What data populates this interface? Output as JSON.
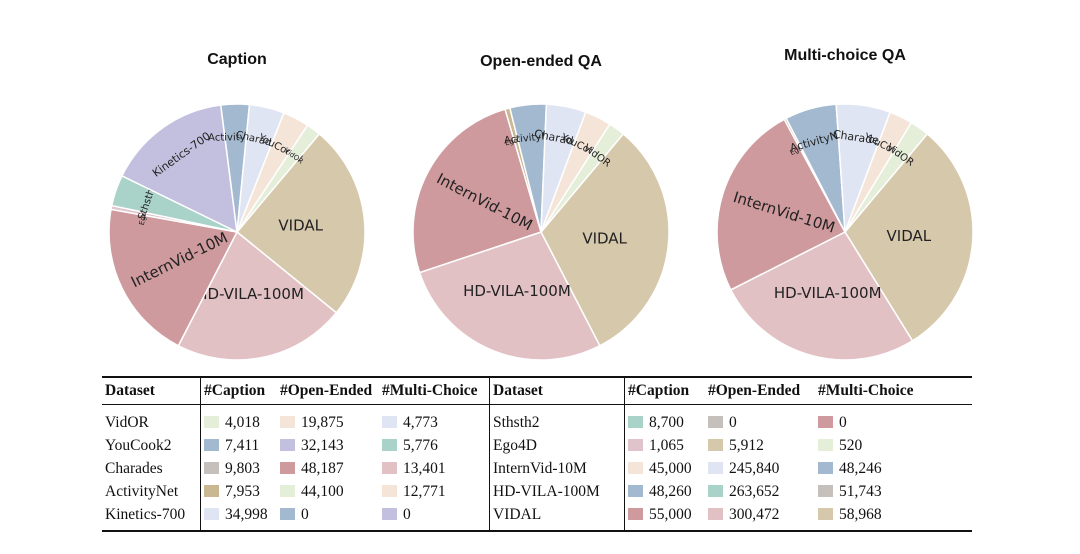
{
  "chart_data": [
    {
      "type": "pie",
      "title": "Caption",
      "labels": [
        "VIDAL",
        "HD-VILA-100M",
        "InternVid-10M",
        "Ego4D",
        "Sthsth2",
        "Kinetics-700",
        "ActivityNet",
        "Charades",
        "YouCook2",
        "VidOR"
      ],
      "values": [
        55000,
        48260,
        45000,
        1065,
        8700,
        34998,
        7953,
        9803,
        7411,
        4018
      ],
      "colors": [
        "#d6c8ab",
        "#e2c1c5",
        "#cf9a9e",
        "#dfc4cb",
        "#a9d2c8",
        "#c2c0de",
        "#a3b9cf",
        "#dfe5f2",
        "#f4e5d8",
        "#e4eed9"
      ],
      "legend": "none"
    },
    {
      "type": "pie",
      "title": "Open-ended QA",
      "labels": [
        "VIDAL",
        "HD-VILA-100M",
        "InternVid-10M",
        "Ego4D",
        "ActivityNet",
        "Charades",
        "YouCook2",
        "VidOR",
        "Kinetics-700",
        "Sthsth2"
      ],
      "values": [
        300472,
        263652,
        245840,
        5912,
        44100,
        48187,
        32143,
        19875,
        0,
        0
      ],
      "colors": [
        "#d6c8ab",
        "#e2c1c5",
        "#cf9a9e",
        "#c9b892",
        "#a3b9cf",
        "#dfe5f2",
        "#f4e5d8",
        "#e4eed9",
        "#c2c0de",
        "#a9d2c8"
      ],
      "legend": "none"
    },
    {
      "type": "pie",
      "title": "Multi-choice QA",
      "labels": [
        "VIDAL",
        "HD-VILA-100M",
        "InternVid-10M",
        "Ego4D",
        "ActivityNet",
        "Charades",
        "YouCook2",
        "VidOR",
        "Kinetics-700",
        "Sthsth2"
      ],
      "values": [
        58968,
        51743,
        48246,
        520,
        12771,
        13401,
        5776,
        4773,
        0,
        0
      ],
      "colors": [
        "#d6c8ab",
        "#e2c1c5",
        "#cf9a9e",
        "#c9b892",
        "#a3b9cf",
        "#dfe5f2",
        "#f4e5d8",
        "#e4eed9",
        "#c2c0de",
        "#a9d2c8"
      ],
      "legend": "none"
    }
  ],
  "table": {
    "headers": [
      "Dataset",
      "#Caption",
      "#Open-Ended",
      "#Multi-Choice",
      "Dataset",
      "#Caption",
      "#Open-Ended",
      "#Multi-Choice"
    ],
    "rows": [
      [
        {
          "text": "VidOR"
        },
        {
          "text": "4,018",
          "color": "#e4eed9"
        },
        {
          "text": "19,875",
          "color": "#f4e5d8"
        },
        {
          "text": "4,773",
          "color": "#dfe5f2"
        },
        {
          "text": "Sthsth2"
        },
        {
          "text": "8,700",
          "color": "#a9d2c8"
        },
        {
          "text": "0",
          "color": "#c6c0bd"
        },
        {
          "text": "0",
          "color": "#cf9a9e"
        }
      ],
      [
        {
          "text": "YouCook2"
        },
        {
          "text": "7,411",
          "color": "#a3b9cf"
        },
        {
          "text": "32,143",
          "color": "#c2c0de"
        },
        {
          "text": "5,776",
          "color": "#a9d2c8"
        },
        {
          "text": "Ego4D"
        },
        {
          "text": "1,065",
          "color": "#dfc4cb"
        },
        {
          "text": "5,912",
          "color": "#d6c8ab"
        },
        {
          "text": "520",
          "color": "#e4eed9"
        }
      ],
      [
        {
          "text": "Charades"
        },
        {
          "text": "9,803",
          "color": "#c6c0bd"
        },
        {
          "text": "48,187",
          "color": "#cf9a9e"
        },
        {
          "text": "13,401",
          "color": "#e2c1c5"
        },
        {
          "text": "InternVid-10M"
        },
        {
          "text": "45,000",
          "color": "#f4e5d8"
        },
        {
          "text": "245,840",
          "color": "#dfe5f2"
        },
        {
          "text": "48,246",
          "color": "#a3b9cf"
        }
      ],
      [
        {
          "text": "ActivityNet"
        },
        {
          "text": "7,953",
          "color": "#c9b892"
        },
        {
          "text": "44,100",
          "color": "#e4eed9"
        },
        {
          "text": "12,771",
          "color": "#f4e5d8"
        },
        {
          "text": "HD-VILA-100M"
        },
        {
          "text": "48,260",
          "color": "#a3b9cf"
        },
        {
          "text": "263,652",
          "color": "#a9d2c8"
        },
        {
          "text": "51,743",
          "color": "#c6c0bd"
        }
      ],
      [
        {
          "text": "Kinetics-700"
        },
        {
          "text": "34,998",
          "color": "#dfe5f2"
        },
        {
          "text": "0",
          "color": "#a3b9cf"
        },
        {
          "text": "0",
          "color": "#c2c0de"
        },
        {
          "text": "VIDAL"
        },
        {
          "text": "55,000",
          "color": "#cf9a9e"
        },
        {
          "text": "300,472",
          "color": "#e2c1c5"
        },
        {
          "text": "58,968",
          "color": "#d6c8ab"
        }
      ]
    ]
  }
}
